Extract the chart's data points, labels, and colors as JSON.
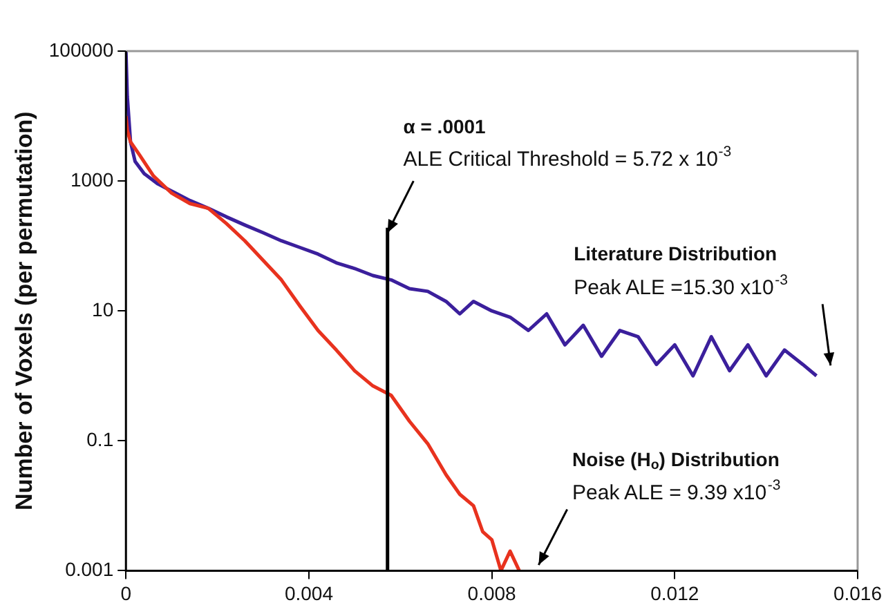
{
  "chart_data": {
    "type": "line",
    "ylabel": "Number of Voxels (per permutation)",
    "xlim": [
      0,
      0.016
    ],
    "xticks": [
      0,
      0.004,
      0.008,
      0.012,
      0.016
    ],
    "ylim": [
      0.001,
      100000
    ],
    "yticks": [
      0.001,
      0.1,
      10,
      1000,
      100000
    ],
    "log": "y",
    "grid": false,
    "legend": false,
    "marker": "none",
    "line_style": "solid",
    "series": [
      {
        "color": "#3b1f9c",
        "x": [
          0,
          3e-05,
          0.0001,
          0.0002,
          0.0004,
          0.0007,
          0.001,
          0.0014,
          0.0018,
          0.0022,
          0.0026,
          0.003,
          0.0034,
          0.0038,
          0.0042,
          0.0046,
          0.005,
          0.0054,
          0.0058,
          0.0062,
          0.0066,
          0.007,
          0.0073,
          0.0076,
          0.008,
          0.0084,
          0.0088,
          0.0092,
          0.0096,
          0.01,
          0.0104,
          0.0108,
          0.0112,
          0.0116,
          0.012,
          0.0124,
          0.0128,
          0.0132,
          0.0136,
          0.014,
          0.0144,
          0.0148,
          0.0151
        ],
        "values": [
          100000,
          20000,
          4000,
          2000,
          1300,
          900,
          700,
          500,
          380,
          280,
          210,
          160,
          120,
          95,
          75,
          55,
          45,
          35,
          30,
          22,
          20,
          14,
          9,
          14,
          10,
          8,
          5,
          9,
          3,
          6,
          2,
          5,
          4,
          1.5,
          3,
          1,
          4,
          1.2,
          3,
          1,
          2.5,
          1.5,
          1
        ]
      },
      {
        "color": "#e8321e",
        "x": [
          0,
          3e-05,
          0.0001,
          0.0003,
          0.0006,
          0.001,
          0.0014,
          0.0018,
          0.0022,
          0.0026,
          0.003,
          0.0034,
          0.0038,
          0.0042,
          0.0046,
          0.005,
          0.0054,
          0.0058,
          0.0062,
          0.0066,
          0.007,
          0.0073,
          0.0076,
          0.0078,
          0.008,
          0.0082,
          0.0084,
          0.0086
        ],
        "values": [
          10000,
          6000,
          4000,
          2500,
          1200,
          650,
          450,
          380,
          220,
          120,
          60,
          30,
          12,
          5,
          2.5,
          1.2,
          0.7,
          0.5,
          0.2,
          0.09,
          0.03,
          0.015,
          0.01,
          0.004,
          0.003,
          0.001,
          0.002,
          0.001
        ]
      }
    ],
    "ref_lines": [
      {
        "axis": "x",
        "value": 0.00572,
        "color": "#000000"
      }
    ],
    "annotations": [
      {
        "text": "α = .0001\nALE Critical Threshold = 5.72 x 10$^{-3}$",
        "x": 0.00572,
        "y": 160
      },
      "Literature Distribution\nPeak ALE =15.30 x10$^{-3}$",
      "Noise (H$_{o}$) Distribution\nPeak ALE = 9.39 x10$^{-3}$"
    ]
  }
}
